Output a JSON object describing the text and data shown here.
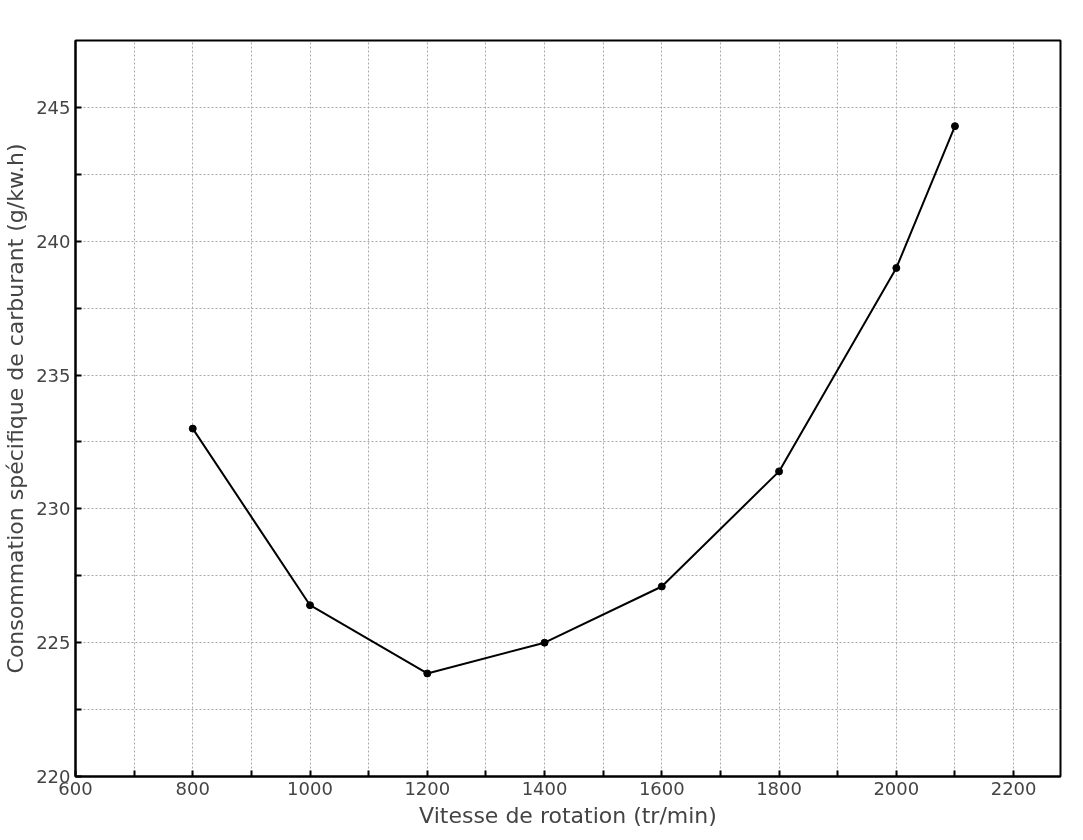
{
  "chart_data": {
    "type": "line",
    "xlabel": "Vitesse de rotation (tr/min)",
    "ylabel": "Consommation spécifique de carburant (g/kw.h)",
    "x": [
      800,
      1000,
      1200,
      1400,
      1600,
      1800,
      2000,
      2100
    ],
    "series": [
      {
        "color": "#000000",
        "values": [
          233.0,
          226.4,
          223.85,
          225.0,
          227.1,
          231.4,
          239.0,
          244.3
        ]
      }
    ],
    "xlim": [
      600,
      2280
    ],
    "ylim": [
      220,
      247.5
    ],
    "xticks": [
      600,
      {
        "value": 700,
        "label": null
      },
      800,
      {
        "value": 900,
        "label": null
      },
      1000,
      {
        "value": 1100,
        "label": null
      },
      1200,
      {
        "value": 1300,
        "label": null
      },
      1400,
      {
        "value": 1500,
        "label": null
      },
      1600,
      {
        "value": 1700,
        "label": null
      },
      1800,
      {
        "value": 1900,
        "label": null
      },
      2000,
      {
        "value": 2100,
        "label": null
      },
      2200
    ],
    "yticks": [
      220,
      {
        "value": 222.5,
        "label": null
      },
      225,
      {
        "value": 227.5,
        "label": null
      },
      230,
      {
        "value": 232.5,
        "label": null
      },
      235,
      {
        "value": 237.5,
        "label": null
      },
      240,
      {
        "value": 242.5,
        "label": null
      },
      245
    ],
    "grid": true,
    "marker": "circle",
    "line_style": "solid"
  }
}
